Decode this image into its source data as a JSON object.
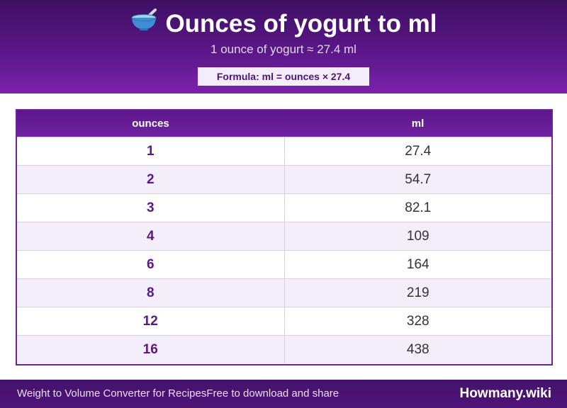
{
  "header": {
    "title": "Ounces of yogurt to ml",
    "subtitle": "1 ounce of yogurt ≈ 27.4 ml",
    "formula": "Formula: ml = ounces × 27.4",
    "icon": "bowl-with-spoon-icon"
  },
  "table": {
    "columns": [
      "ounces",
      "ml"
    ],
    "rows": [
      {
        "ounces": "1",
        "ml": "27.4"
      },
      {
        "ounces": "2",
        "ml": "54.7"
      },
      {
        "ounces": "3",
        "ml": "82.1"
      },
      {
        "ounces": "4",
        "ml": "109"
      },
      {
        "ounces": "6",
        "ml": "164"
      },
      {
        "ounces": "8",
        "ml": "219"
      },
      {
        "ounces": "12",
        "ml": "328"
      },
      {
        "ounces": "16",
        "ml": "438"
      }
    ]
  },
  "footer": {
    "left_text": "Weight to Volume Converter for RecipesFree to download and share",
    "brand": "Howmany.wiki"
  },
  "colors": {
    "header_dark": "#3e0f63",
    "header_light": "#7a22ad",
    "accent_text": "#5a1788",
    "row_alt": "#f4eefa"
  }
}
